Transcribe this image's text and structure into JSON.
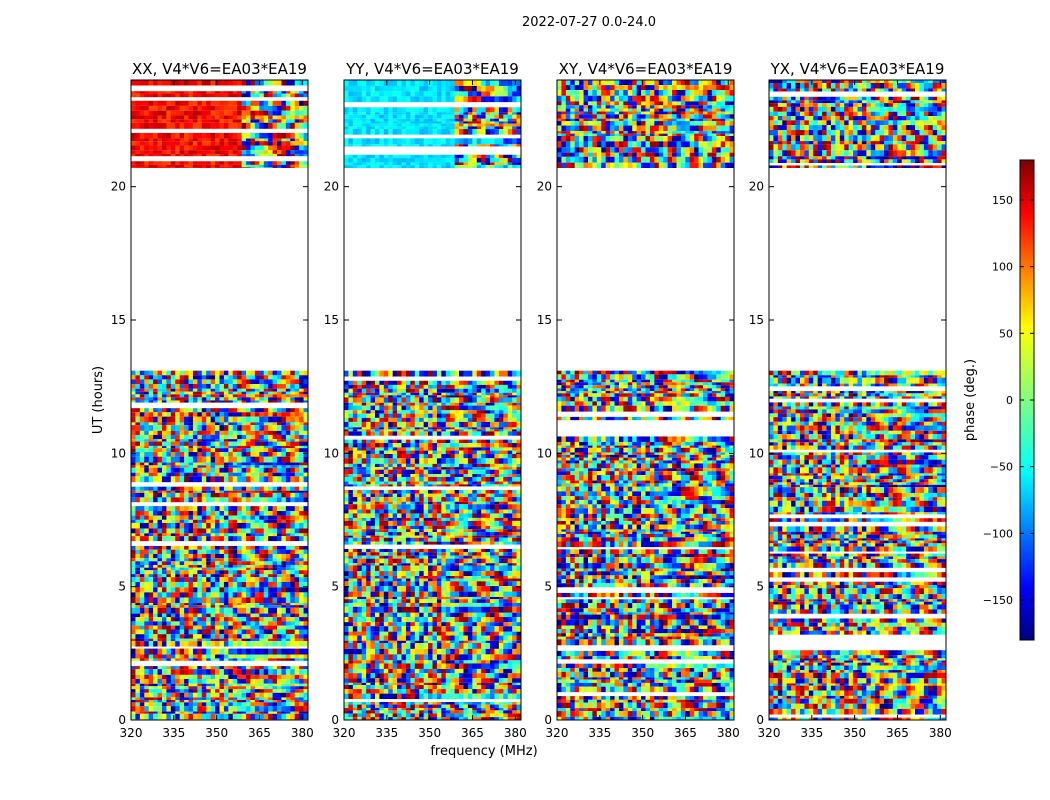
{
  "chart_data": {
    "type": "heatmap",
    "suptitle": "2022-07-27 0.0-24.0",
    "xlabel": "frequency (MHz)",
    "ylabel": "UT (hours)",
    "xlim": [
      320,
      382
    ],
    "ylim": [
      0,
      24
    ],
    "xticks": [
      320,
      335,
      350,
      365,
      380
    ],
    "yticks": [
      0,
      5,
      10,
      15,
      20
    ],
    "data_coverage_hours": [
      [
        0.0,
        13.1
      ],
      [
        20.7,
        24.0
      ]
    ],
    "gap_hours": [
      13.1,
      20.7
    ],
    "colormap": "jet",
    "panels": [
      {
        "title": "XX, V4*V6=EA03*EA19",
        "polarization": "XX"
      },
      {
        "title": "YY, V4*V6=EA03*EA19",
        "polarization": "YY"
      },
      {
        "title": "XY, V4*V6=EA03*EA19",
        "polarization": "XY"
      },
      {
        "title": "YX, V4*V6=EA03*EA19",
        "polarization": "YX"
      }
    ],
    "colorbar": {
      "label": "phase (deg.)",
      "range": [
        -180,
        180
      ],
      "ticks": [
        150,
        100,
        50,
        0,
        -50,
        -100,
        -150
      ],
      "tick_labels": [
        "150",
        "100",
        "50",
        "0",
        "−50",
        "−100",
        "−150"
      ]
    }
  },
  "colors": {
    "jet": [
      "#00007f",
      "#0000ff",
      "#007fff",
      "#00ffff",
      "#7fff7f",
      "#ffff00",
      "#ff7f00",
      "#ff0000",
      "#7f0000"
    ],
    "background": "#ffffff",
    "axes": "#000000"
  }
}
